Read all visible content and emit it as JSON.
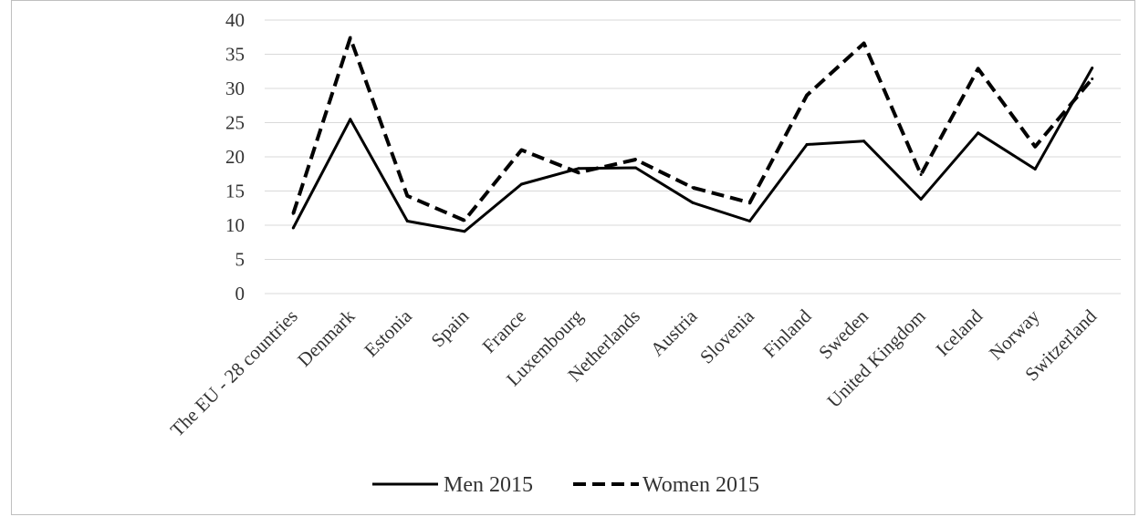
{
  "chart_data": {
    "type": "line",
    "categories": [
      "The EU - 28 countries",
      "Denmark",
      "Estonia",
      "Spain",
      "France",
      "Luxembourg",
      "Netherlands",
      "Austria",
      "Slovenia",
      "Finland",
      "Sweden",
      "United Kingdom",
      "Iceland",
      "Norway",
      "Switzerland"
    ],
    "series": [
      {
        "name": "Men 2015",
        "values": [
          9.6,
          25.5,
          10.6,
          9.1,
          16.0,
          18.3,
          18.4,
          13.3,
          10.6,
          21.8,
          22.3,
          13.8,
          23.5,
          18.2,
          33.0
        ],
        "color": "#000000",
        "dash": "solid"
      },
      {
        "name": "Women 2015",
        "values": [
          11.7,
          37.4,
          14.3,
          10.7,
          21.0,
          17.7,
          19.6,
          15.5,
          13.3,
          29.0,
          36.6,
          17.4,
          32.9,
          21.5,
          31.4
        ],
        "color": "#000000",
        "dash": "dashed"
      }
    ],
    "yticks": [
      "0",
      "5",
      "10",
      "15",
      "20",
      "25",
      "30",
      "35",
      "40"
    ],
    "ylim": [
      0,
      40
    ],
    "xlabel": "",
    "ylabel": "",
    "grid": true,
    "legend_position": "bottom"
  },
  "footer": {
    "text": ""
  }
}
